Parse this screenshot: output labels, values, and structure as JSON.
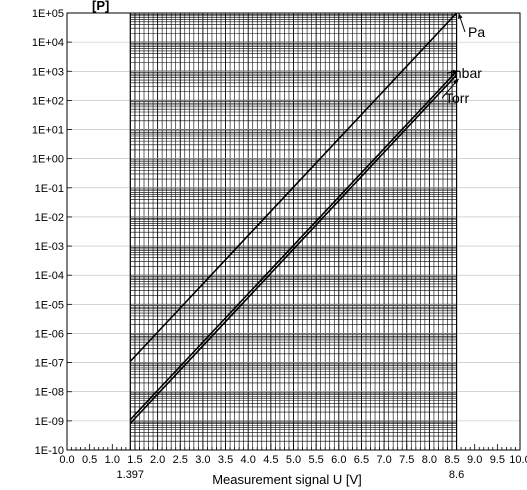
{
  "chart_data": {
    "type": "line",
    "title": "",
    "ylabel_partial": "[P]",
    "xlabel": "Measurement signal U [V]",
    "x_scale": "linear",
    "y_scale": "log",
    "xlim": [
      0,
      10
    ],
    "ylim": [
      1e-10,
      100000.0
    ],
    "shaded_range_x": [
      1.397,
      8.6
    ],
    "x_ticks": [
      "0.0",
      "0.5",
      "1.0",
      "1.5",
      "2.0",
      "2.5",
      "3.0",
      "3.5",
      "4.0",
      "4.5",
      "5.0",
      "5.5",
      "6.0",
      "6.5",
      "7.0",
      "7.5",
      "8.0",
      "8.5",
      "9.0",
      "9.5",
      "10.0"
    ],
    "x_extra_labels": [
      "1.397",
      "8.6"
    ],
    "y_ticks": [
      "1E+05",
      "1E+04",
      "1E+03",
      "1E+02",
      "1E+01",
      "1E+00",
      "1E-01",
      "1E-02",
      "1E-03",
      "1E-04",
      "1E-05",
      "1E-06",
      "1E-07",
      "1E-08",
      "1E-09",
      "1E-10"
    ],
    "series": [
      {
        "name": "Pa",
        "x": [
          1.397,
          8.6
        ],
        "y": [
          1.1e-07,
          100000.0
        ]
      },
      {
        "name": "mbar",
        "x": [
          1.397,
          8.6
        ],
        "y": [
          1.1e-09,
          1000.0
        ]
      },
      {
        "name": "Torr",
        "x": [
          1.397,
          8.6
        ],
        "y": [
          8.2e-10,
          750.0
        ]
      }
    ],
    "grid": true,
    "legend": "labels with arrows, right of plot"
  }
}
